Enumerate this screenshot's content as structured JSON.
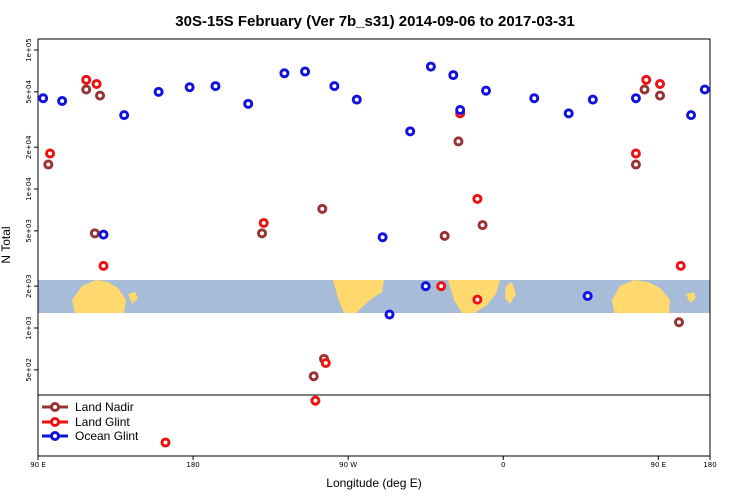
{
  "chart_data": {
    "type": "scatter",
    "title": "30S-15S February (Ver 7b_s31)   2014-09-06 to 2017-03-31",
    "xlabel": "Longitude (deg E)",
    "ylabel": "N Total",
    "y_scale": "log",
    "xlim": [
      90,
      480
    ],
    "ylim": [
      120,
      120000
    ],
    "x_ticks": [
      {
        "value": 90,
        "label": "90 E"
      },
      {
        "value": 180,
        "label": "180"
      },
      {
        "value": 270,
        "label": "90 W"
      },
      {
        "value": 360,
        "label": "0"
      },
      {
        "value": 450,
        "label": "90 E"
      },
      {
        "value": 480,
        "label": "180"
      }
    ],
    "y_ticks": [
      {
        "value": 500,
        "label": "5e+02"
      },
      {
        "value": 1000,
        "label": "1e+03"
      },
      {
        "value": 2000,
        "label": "2e+03"
      },
      {
        "value": 5000,
        "label": "5e+03"
      },
      {
        "value": 10000,
        "label": "1e+04"
      },
      {
        "value": 20000,
        "label": "2e+04"
      },
      {
        "value": 50000,
        "label": "5e+04"
      },
      {
        "value": 100000,
        "label": "1e+05"
      }
    ],
    "legend_location": "bottom-left",
    "series": [
      {
        "name": "Land Nadir",
        "color": "#993333",
        "x": [
          118,
          126,
          96,
          123,
          256,
          250,
          255,
          220,
          326,
          334,
          348,
          442,
          451,
          437,
          462
        ],
        "y": [
          52000,
          47000,
          15000,
          4800,
          600,
          450,
          7200,
          4800,
          4600,
          22000,
          5500,
          52000,
          47000,
          15000,
          1100
        ]
      },
      {
        "name": "Land Glint",
        "color": "#ee1111",
        "x": [
          118,
          124,
          97,
          128,
          164,
          251,
          257,
          221,
          324,
          335,
          345,
          345,
          443,
          451,
          437,
          463
        ],
        "y": [
          61000,
          57000,
          18000,
          2800,
          150,
          300,
          560,
          5700,
          2000,
          35000,
          8500,
          1600,
          61000,
          57000,
          18000,
          2800
        ]
      },
      {
        "name": "Ocean Glint",
        "color": "#1111dd",
        "x": [
          93,
          104,
          128,
          140,
          160,
          178,
          193,
          212,
          233,
          245,
          262,
          275,
          290,
          294,
          306,
          318,
          331,
          350,
          378,
          409,
          437,
          469,
          477,
          315,
          335,
          412,
          398
        ],
        "y": [
          45000,
          43000,
          4700,
          34000,
          50000,
          54000,
          55000,
          41000,
          68000,
          70000,
          55000,
          44000,
          4500,
          1250,
          26000,
          76000,
          66000,
          51000,
          45000,
          1700,
          45000,
          34000,
          52000,
          2000,
          37000,
          44000,
          35000
        ]
      }
    ]
  }
}
